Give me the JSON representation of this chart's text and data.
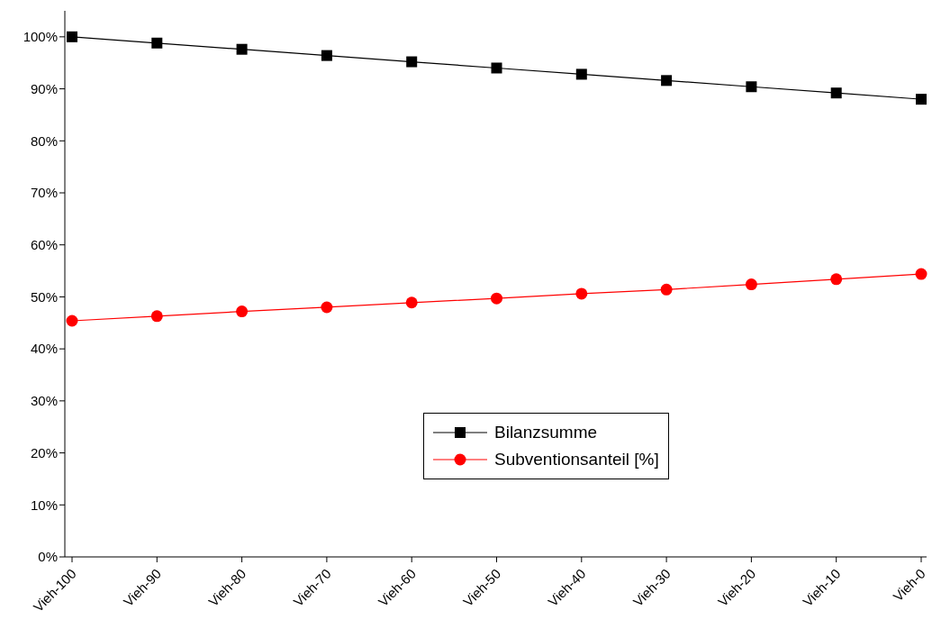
{
  "chart_data": {
    "type": "line",
    "categories": [
      "Vieh-100",
      "Vieh-90",
      "Vieh-80",
      "Vieh-70",
      "Vieh-60",
      "Vieh-50",
      "Vieh-40",
      "Vieh-30",
      "Vieh-20",
      "Vieh-10",
      "Vieh-0"
    ],
    "series": [
      {
        "name": "Bilanzsumme",
        "color": "#000000",
        "marker": "square",
        "values": [
          100,
          98.8,
          97.6,
          96.4,
          95.2,
          94.0,
          92.8,
          91.6,
          90.4,
          89.2,
          88.0
        ]
      },
      {
        "name": "Subventionsanteil [%]",
        "color": "#ff0000",
        "marker": "circle",
        "values": [
          45.4,
          46.3,
          47.2,
          48.0,
          48.9,
          49.7,
          50.6,
          51.4,
          52.4,
          53.4,
          54.4
        ]
      }
    ],
    "ylim": [
      0,
      105
    ],
    "yticks": [
      {
        "value": 0,
        "label": "0%"
      },
      {
        "value": 10,
        "label": "10%"
      },
      {
        "value": 20,
        "label": "20%"
      },
      {
        "value": 30,
        "label": "30%"
      },
      {
        "value": 40,
        "label": "40%"
      },
      {
        "value": 50,
        "label": "50%"
      },
      {
        "value": 60,
        "label": "60%"
      },
      {
        "value": 70,
        "label": "70%"
      },
      {
        "value": 80,
        "label": "80%"
      },
      {
        "value": 90,
        "label": "90%"
      },
      {
        "value": 100,
        "label": "100%"
      }
    ],
    "grid": false,
    "legend": "bottom"
  }
}
